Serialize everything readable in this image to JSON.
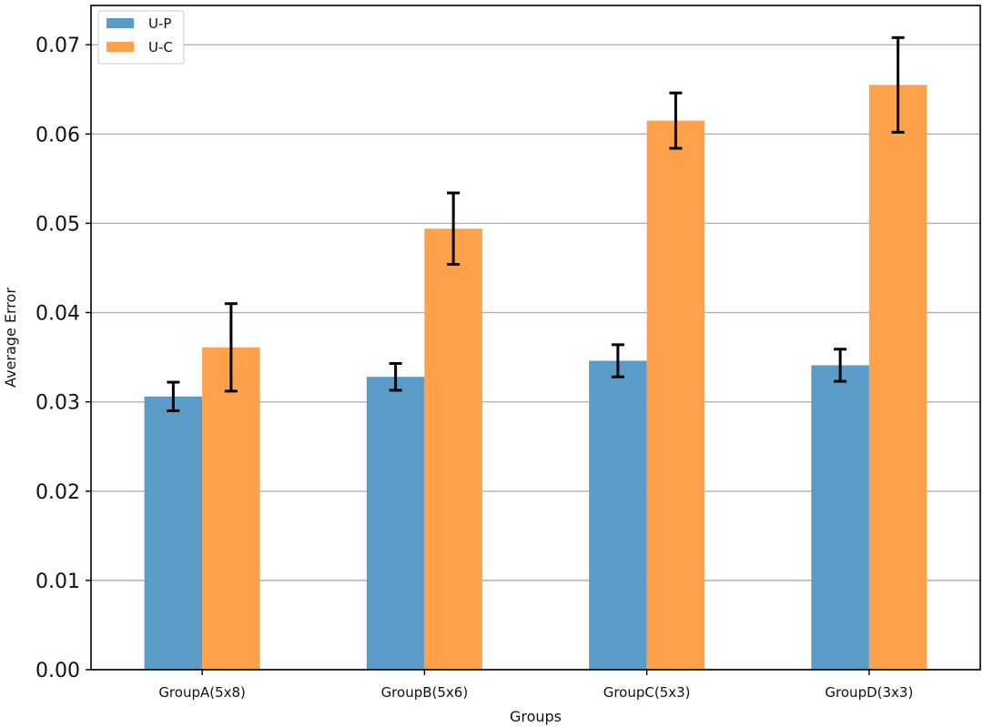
{
  "chart_data": {
    "type": "bar",
    "title": "",
    "xlabel": "Groups",
    "ylabel": "Average Error",
    "categories": [
      "GroupA(5x8)",
      "GroupB(5x6)",
      "GroupC(5x3)",
      "GroupD(3x3)"
    ],
    "series": [
      {
        "name": "U-P",
        "color": "#5b9bc8",
        "values": [
          0.0306,
          0.0328,
          0.0346,
          0.0341
        ],
        "error": [
          0.0016,
          0.0015,
          0.0018,
          0.0018
        ]
      },
      {
        "name": "U-C",
        "color": "#ffa04a",
        "values": [
          0.0361,
          0.0494,
          0.0615,
          0.0655
        ],
        "error": [
          0.0049,
          0.004,
          0.0031,
          0.0053
        ]
      }
    ],
    "ylim": [
      0,
      0.0744
    ],
    "yticks": [
      "0.00",
      "0.01",
      "0.02",
      "0.03",
      "0.04",
      "0.05",
      "0.06",
      "0.07"
    ],
    "grid": "horizontal",
    "legend_position": "top-left"
  }
}
